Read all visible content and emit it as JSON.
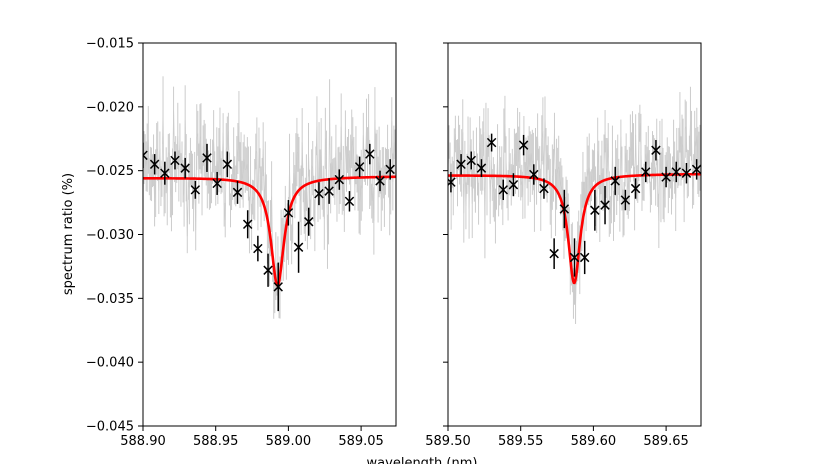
{
  "chart_data": [
    {
      "type": "scatter",
      "panel": "left",
      "xlabel": "wavelength (nm)",
      "ylabel": "spectrum ratio (%)",
      "xlim": [
        588.9,
        589.074
      ],
      "ylim": [
        -0.045,
        -0.015
      ],
      "xticks": [
        "588.90",
        "588.95",
        "589.00",
        "589.05"
      ],
      "xtick_values": [
        588.9,
        588.95,
        589.0,
        589.05
      ],
      "yticks": [
        "−0.015",
        "−0.020",
        "−0.025",
        "−0.030",
        "−0.035",
        "−0.040",
        "−0.045"
      ],
      "ytick_values": [
        -0.015,
        -0.02,
        -0.025,
        -0.03,
        -0.035,
        -0.04,
        -0.045
      ],
      "model_center": 588.9925,
      "model_depth": 0.0085,
      "model_width": 0.0055,
      "model_slope": 1.5e-05,
      "model_baseline": -0.0255,
      "points": [
        {
          "x": 588.9,
          "y": -0.0238,
          "err": 0.001
        },
        {
          "x": 588.908,
          "y": -0.0245,
          "err": 0.0008
        },
        {
          "x": 588.915,
          "y": -0.0252,
          "err": 0.0009
        },
        {
          "x": 588.922,
          "y": -0.0242,
          "err": 0.0007
        },
        {
          "x": 588.929,
          "y": -0.0248,
          "err": 0.0008
        },
        {
          "x": 588.936,
          "y": -0.0265,
          "err": 0.0007
        },
        {
          "x": 588.944,
          "y": -0.024,
          "err": 0.0011
        },
        {
          "x": 588.951,
          "y": -0.026,
          "err": 0.0009
        },
        {
          "x": 588.958,
          "y": -0.0245,
          "err": 0.001
        },
        {
          "x": 588.965,
          "y": -0.0267,
          "err": 0.0009
        },
        {
          "x": 588.972,
          "y": -0.0292,
          "err": 0.0011
        },
        {
          "x": 588.979,
          "y": -0.0311,
          "err": 0.001
        },
        {
          "x": 588.986,
          "y": -0.0328,
          "err": 0.0013
        },
        {
          "x": 588.993,
          "y": -0.0341,
          "err": 0.0019
        },
        {
          "x": 589.0,
          "y": -0.0283,
          "err": 0.001
        },
        {
          "x": 589.007,
          "y": -0.031,
          "err": 0.002
        },
        {
          "x": 589.014,
          "y": -0.029,
          "err": 0.0011
        },
        {
          "x": 589.021,
          "y": -0.0268,
          "err": 0.0009
        },
        {
          "x": 589.028,
          "y": -0.0266,
          "err": 0.001
        },
        {
          "x": 589.035,
          "y": -0.0257,
          "err": 0.0008
        },
        {
          "x": 589.042,
          "y": -0.0274,
          "err": 0.0008
        },
        {
          "x": 589.049,
          "y": -0.0247,
          "err": 0.0008
        },
        {
          "x": 589.056,
          "y": -0.0237,
          "err": 0.0008
        },
        {
          "x": 589.063,
          "y": -0.0258,
          "err": 0.0008
        },
        {
          "x": 589.07,
          "y": -0.0249,
          "err": 0.0008
        }
      ]
    },
    {
      "type": "scatter",
      "panel": "right",
      "xlabel": "wavelength (nm)",
      "ylabel": "",
      "xlim": [
        589.5,
        589.674
      ],
      "ylim": [
        -0.045,
        -0.015
      ],
      "xticks": [
        "589.50",
        "589.55",
        "589.60",
        "589.65"
      ],
      "xtick_values": [
        589.5,
        589.55,
        589.6,
        589.65
      ],
      "yticks": [],
      "ytick_values": [
        -0.015,
        -0.02,
        -0.025,
        -0.03,
        -0.035,
        -0.04,
        -0.045
      ],
      "model_center": 589.5868,
      "model_depth": 0.0085,
      "model_width": 0.005,
      "model_slope": 1.3e-05,
      "model_baseline": -0.0253,
      "points": [
        {
          "x": 589.502,
          "y": -0.0259,
          "err": 0.0008
        },
        {
          "x": 589.509,
          "y": -0.0245,
          "err": 0.0008
        },
        {
          "x": 589.516,
          "y": -0.0242,
          "err": 0.0007
        },
        {
          "x": 589.523,
          "y": -0.0248,
          "err": 0.0007
        },
        {
          "x": 589.53,
          "y": -0.0228,
          "err": 0.0007
        },
        {
          "x": 589.538,
          "y": -0.0265,
          "err": 0.0008
        },
        {
          "x": 589.545,
          "y": -0.0261,
          "err": 0.0009
        },
        {
          "x": 589.552,
          "y": -0.023,
          "err": 0.0008
        },
        {
          "x": 589.559,
          "y": -0.0253,
          "err": 0.0008
        },
        {
          "x": 589.566,
          "y": -0.0264,
          "err": 0.0008
        },
        {
          "x": 589.573,
          "y": -0.0315,
          "err": 0.0012
        },
        {
          "x": 589.58,
          "y": -0.028,
          "err": 0.0015
        },
        {
          "x": 589.587,
          "y": -0.0318,
          "err": 0.0015
        },
        {
          "x": 589.594,
          "y": -0.0318,
          "err": 0.0013
        },
        {
          "x": 589.601,
          "y": -0.0281,
          "err": 0.0016
        },
        {
          "x": 589.608,
          "y": -0.0277,
          "err": 0.0015
        },
        {
          "x": 589.615,
          "y": -0.0258,
          "err": 0.0011
        },
        {
          "x": 589.622,
          "y": -0.0273,
          "err": 0.0008
        },
        {
          "x": 589.629,
          "y": -0.0264,
          "err": 0.0008
        },
        {
          "x": 589.636,
          "y": -0.0251,
          "err": 0.0008
        },
        {
          "x": 589.643,
          "y": -0.0234,
          "err": 0.0008
        },
        {
          "x": 589.65,
          "y": -0.0255,
          "err": 0.0008
        },
        {
          "x": 589.657,
          "y": -0.0251,
          "err": 0.0008
        },
        {
          "x": 589.664,
          "y": -0.0252,
          "err": 0.0008
        },
        {
          "x": 589.671,
          "y": -0.0249,
          "err": 0.0008
        }
      ]
    }
  ],
  "colors": {
    "model": "#ff0000",
    "points": "#000000",
    "raw_data": "#cccccc",
    "axes": "#000000"
  }
}
